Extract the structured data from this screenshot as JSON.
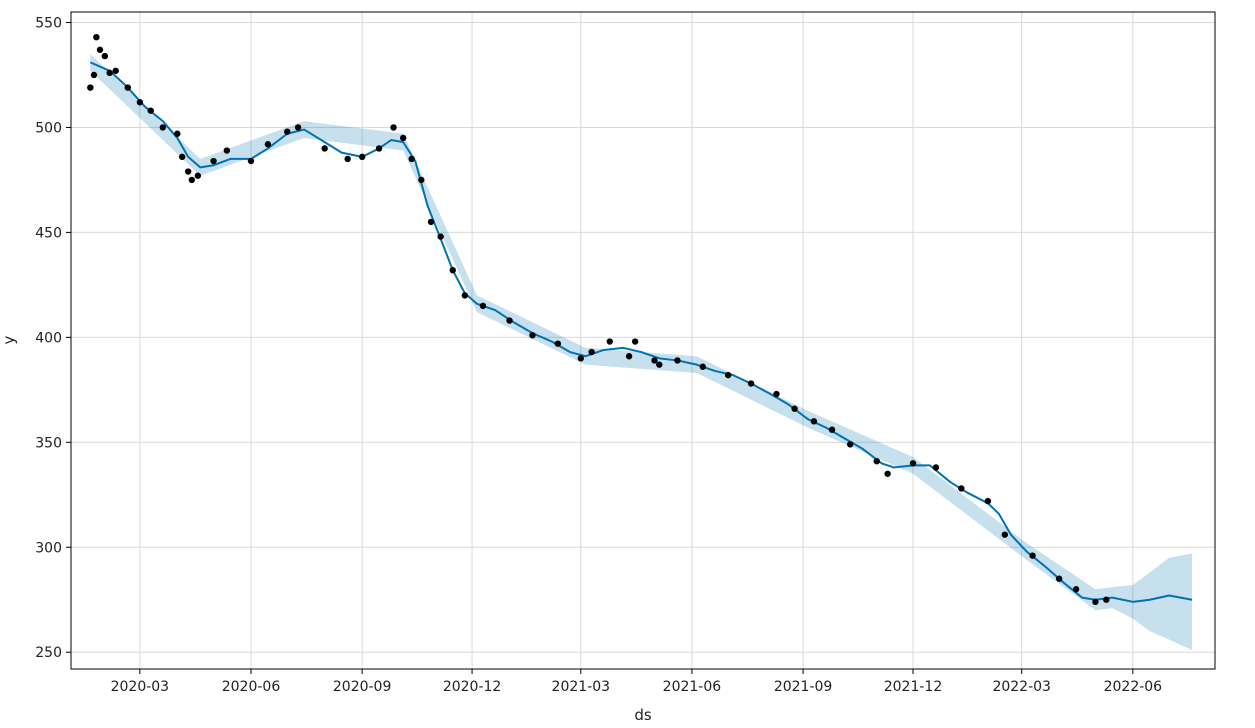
{
  "chart_data": {
    "type": "line",
    "title": "",
    "xlabel": "ds",
    "ylabel": "y",
    "grid": true,
    "x_axis": {
      "type": "date",
      "range": [
        "2020-01-04",
        "2022-08-08"
      ],
      "ticks": [
        "2020-03-01",
        "2020-06-01",
        "2020-09-01",
        "2020-12-01",
        "2021-03-01",
        "2021-06-01",
        "2021-09-01",
        "2021-12-01",
        "2022-03-01",
        "2022-06-01"
      ],
      "tick_labels": [
        "2020-03",
        "2020-06",
        "2020-09",
        "2020-12",
        "2021-03",
        "2021-06",
        "2021-09",
        "2021-12",
        "2022-03",
        "2022-06"
      ]
    },
    "y_axis": {
      "range": [
        242,
        555
      ],
      "ticks": [
        250,
        300,
        350,
        400,
        450,
        500,
        550
      ],
      "tick_labels": [
        "250",
        "300",
        "350",
        "400",
        "450",
        "500",
        "550"
      ]
    },
    "colors": {
      "forecast_line": "#0072B2",
      "uncertainty_band": "#0072B2",
      "observed_points": "#000000",
      "grid": "#d9d9d9"
    },
    "series": [
      {
        "kind": "forecast",
        "points": [
          [
            "2020-01-20",
            531
          ],
          [
            "2020-02-05",
            527
          ],
          [
            "2020-02-20",
            519
          ],
          [
            "2020-03-05",
            510
          ],
          [
            "2020-03-20",
            503
          ],
          [
            "2020-04-01",
            495
          ],
          [
            "2020-04-10",
            486
          ],
          [
            "2020-04-20",
            481
          ],
          [
            "2020-05-01",
            482
          ],
          [
            "2020-05-15",
            485
          ],
          [
            "2020-06-01",
            485
          ],
          [
            "2020-06-15",
            490
          ],
          [
            "2020-07-01",
            497
          ],
          [
            "2020-07-15",
            499
          ],
          [
            "2020-08-01",
            493
          ],
          [
            "2020-08-15",
            488
          ],
          [
            "2020-09-01",
            486
          ],
          [
            "2020-09-15",
            490
          ],
          [
            "2020-09-25",
            494
          ],
          [
            "2020-10-05",
            493
          ],
          [
            "2020-10-15",
            484
          ],
          [
            "2020-10-25",
            463
          ],
          [
            "2020-11-05",
            447
          ],
          [
            "2020-11-15",
            432
          ],
          [
            "2020-11-25",
            421
          ],
          [
            "2020-12-05",
            416
          ],
          [
            "2020-12-20",
            413
          ],
          [
            "2021-01-05",
            407
          ],
          [
            "2021-01-20",
            402
          ],
          [
            "2021-02-05",
            398
          ],
          [
            "2021-02-20",
            393
          ],
          [
            "2021-03-05",
            391
          ],
          [
            "2021-03-20",
            394
          ],
          [
            "2021-04-05",
            395
          ],
          [
            "2021-04-20",
            393
          ],
          [
            "2021-05-05",
            390
          ],
          [
            "2021-05-20",
            389
          ],
          [
            "2021-06-05",
            387
          ],
          [
            "2021-06-20",
            384
          ],
          [
            "2021-07-05",
            382
          ],
          [
            "2021-07-20",
            378
          ],
          [
            "2021-08-05",
            373
          ],
          [
            "2021-08-20",
            368
          ],
          [
            "2021-09-05",
            361
          ],
          [
            "2021-09-20",
            357
          ],
          [
            "2021-10-05",
            352
          ],
          [
            "2021-10-20",
            347
          ],
          [
            "2021-11-05",
            340
          ],
          [
            "2021-11-15",
            338
          ],
          [
            "2021-12-01",
            339
          ],
          [
            "2021-12-15",
            339
          ],
          [
            "2022-01-01",
            331
          ],
          [
            "2022-01-15",
            326
          ],
          [
            "2022-02-01",
            321
          ],
          [
            "2022-02-10",
            316
          ],
          [
            "2022-02-20",
            306
          ],
          [
            "2022-03-05",
            298
          ],
          [
            "2022-03-20",
            291
          ],
          [
            "2022-04-05",
            283
          ],
          [
            "2022-04-20",
            276
          ],
          [
            "2022-05-01",
            275
          ],
          [
            "2022-05-15",
            276
          ],
          [
            "2022-06-01",
            274
          ],
          [
            "2022-06-15",
            275
          ],
          [
            "2022-07-01",
            277
          ],
          [
            "2022-07-20",
            275
          ]
        ]
      },
      {
        "kind": "uncertainty_band",
        "points": [
          [
            "2020-01-20",
            527,
            535
          ],
          [
            "2020-04-20",
            477,
            485
          ],
          [
            "2020-07-15",
            495,
            503
          ],
          [
            "2020-10-05",
            489,
            497
          ],
          [
            "2020-12-05",
            412,
            420
          ],
          [
            "2021-03-05",
            387,
            395
          ],
          [
            "2021-06-05",
            383,
            391
          ],
          [
            "2021-09-05",
            357,
            365
          ],
          [
            "2021-12-01",
            335,
            343
          ],
          [
            "2022-03-05",
            294,
            302
          ],
          [
            "2022-05-01",
            270,
            280
          ],
          [
            "2022-05-15",
            271,
            281
          ],
          [
            "2022-06-01",
            266,
            282
          ],
          [
            "2022-06-15",
            260,
            288
          ],
          [
            "2022-07-01",
            256,
            295
          ],
          [
            "2022-07-20",
            251,
            297
          ]
        ]
      },
      {
        "kind": "observed",
        "points": [
          [
            "2020-01-20",
            519
          ],
          [
            "2020-01-23",
            525
          ],
          [
            "2020-01-25",
            543
          ],
          [
            "2020-01-28",
            537
          ],
          [
            "2020-02-01",
            534
          ],
          [
            "2020-02-05",
            526
          ],
          [
            "2020-02-10",
            527
          ],
          [
            "2020-02-20",
            519
          ],
          [
            "2020-03-01",
            512
          ],
          [
            "2020-03-10",
            508
          ],
          [
            "2020-03-20",
            500
          ],
          [
            "2020-04-01",
            497
          ],
          [
            "2020-04-05",
            486
          ],
          [
            "2020-04-10",
            479
          ],
          [
            "2020-04-13",
            475
          ],
          [
            "2020-04-18",
            477
          ],
          [
            "2020-05-01",
            484
          ],
          [
            "2020-05-12",
            489
          ],
          [
            "2020-06-01",
            484
          ],
          [
            "2020-06-15",
            492
          ],
          [
            "2020-07-01",
            498
          ],
          [
            "2020-07-10",
            500
          ],
          [
            "2020-08-01",
            490
          ],
          [
            "2020-08-20",
            485
          ],
          [
            "2020-09-01",
            486
          ],
          [
            "2020-09-15",
            490
          ],
          [
            "2020-09-27",
            500
          ],
          [
            "2020-10-05",
            495
          ],
          [
            "2020-10-12",
            485
          ],
          [
            "2020-10-20",
            475
          ],
          [
            "2020-10-28",
            455
          ],
          [
            "2020-11-05",
            448
          ],
          [
            "2020-11-15",
            432
          ],
          [
            "2020-11-25",
            420
          ],
          [
            "2020-12-10",
            415
          ],
          [
            "2021-01-01",
            408
          ],
          [
            "2021-01-20",
            401
          ],
          [
            "2021-02-10",
            397
          ],
          [
            "2021-03-01",
            390
          ],
          [
            "2021-03-10",
            393
          ],
          [
            "2021-03-25",
            398
          ],
          [
            "2021-04-10",
            391
          ],
          [
            "2021-04-15",
            398
          ],
          [
            "2021-05-01",
            389
          ],
          [
            "2021-05-05",
            387
          ],
          [
            "2021-05-20",
            389
          ],
          [
            "2021-06-10",
            386
          ],
          [
            "2021-07-01",
            382
          ],
          [
            "2021-07-20",
            378
          ],
          [
            "2021-08-10",
            373
          ],
          [
            "2021-08-25",
            366
          ],
          [
            "2021-09-10",
            360
          ],
          [
            "2021-09-25",
            356
          ],
          [
            "2021-10-10",
            349
          ],
          [
            "2021-11-01",
            341
          ],
          [
            "2021-11-10",
            335
          ],
          [
            "2021-12-01",
            340
          ],
          [
            "2021-12-20",
            338
          ],
          [
            "2022-01-10",
            328
          ],
          [
            "2022-02-01",
            322
          ],
          [
            "2022-02-15",
            306
          ],
          [
            "2022-03-10",
            296
          ],
          [
            "2022-04-01",
            285
          ],
          [
            "2022-04-15",
            280
          ],
          [
            "2022-05-01",
            274
          ],
          [
            "2022-05-10",
            275
          ]
        ]
      }
    ]
  }
}
